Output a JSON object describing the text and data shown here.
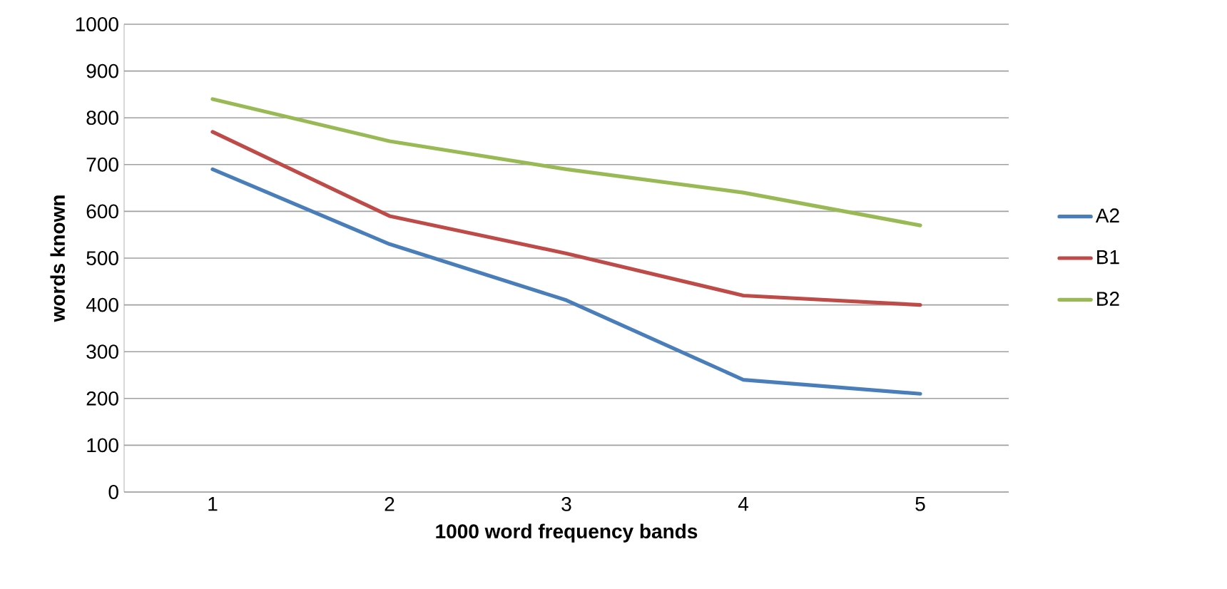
{
  "chart_data": {
    "type": "line",
    "xlabel": "1000 word frequency bands",
    "ylabel": "words known",
    "categories": [
      "1",
      "2",
      "3",
      "4",
      "5"
    ],
    "series": [
      {
        "name": "A2",
        "color": "#4a7ebb",
        "values": [
          690,
          530,
          410,
          240,
          210
        ]
      },
      {
        "name": "B1",
        "color": "#be4b48",
        "values": [
          770,
          590,
          510,
          420,
          400
        ]
      },
      {
        "name": "B2",
        "color": "#98b954",
        "values": [
          840,
          750,
          690,
          640,
          570
        ]
      }
    ],
    "ylim": [
      0,
      1000
    ],
    "yticks": [
      0,
      100,
      200,
      300,
      400,
      500,
      600,
      700,
      800,
      900,
      1000
    ],
    "grid": "y",
    "legend": "right",
    "marker": "none",
    "line_style": "solid"
  }
}
